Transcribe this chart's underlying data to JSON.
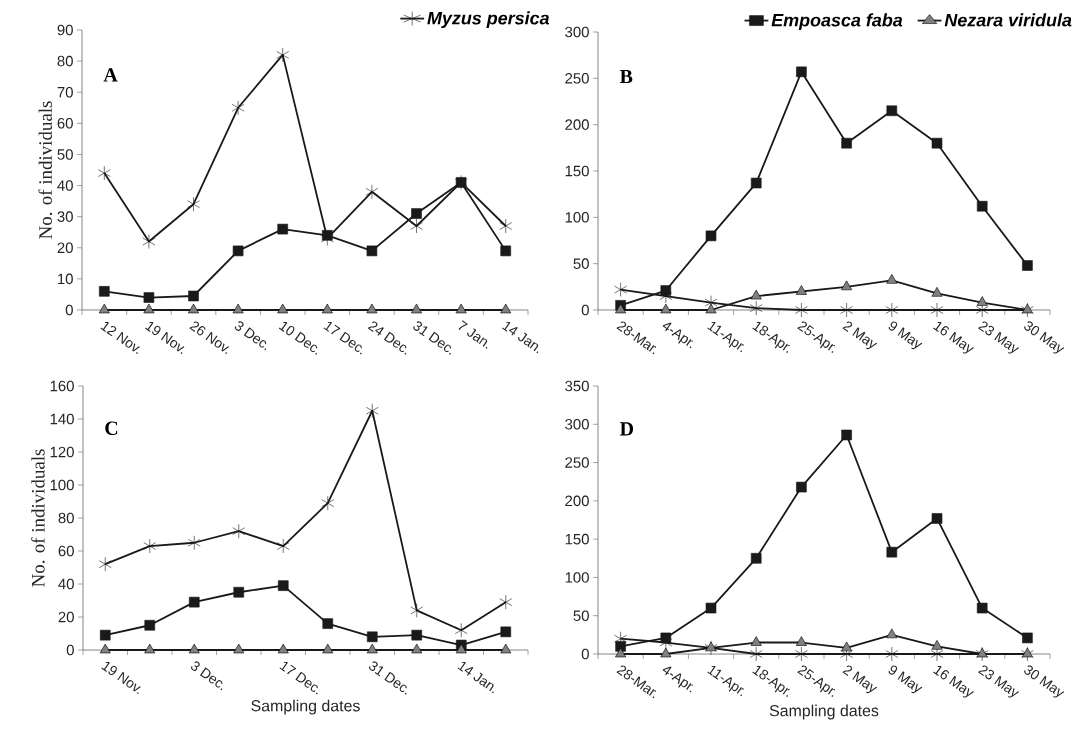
{
  "chart_data": [
    {
      "type": "line",
      "ylabel": "No. of individuals",
      "annotations": [
        "A"
      ],
      "legend": "top right",
      "categories": [
        "12 Nov.",
        "19 Nov.",
        "26 Nov.",
        "3 Dec.",
        "10 Dec.",
        "17 Dec.",
        "24 Dec.",
        "31 Dec.",
        "7 Jan.",
        "14 Jan."
      ],
      "ylim": [
        0,
        90
      ],
      "yticks": [
        0,
        10,
        20,
        30,
        40,
        50,
        60,
        70,
        80,
        90
      ],
      "series": [
        {
          "name": "Myzus persica",
          "color": "#1a1a1a",
          "marker": "cross",
          "values": [
            44,
            22,
            34,
            65,
            82,
            23,
            38,
            27,
            41,
            27
          ]
        },
        {
          "color": "#1a1a1a",
          "marker": "square",
          "values": [
            6,
            4,
            4.5,
            19,
            26,
            24,
            19,
            31,
            41,
            19
          ]
        },
        {
          "color": "#808080",
          "marker": "triangle",
          "values": [
            0,
            0,
            0,
            0,
            0,
            0,
            0,
            0,
            0,
            0
          ]
        }
      ]
    },
    {
      "type": "line",
      "annotations": [
        "B"
      ],
      "legend": "top right",
      "categories": [
        "28-Mar.",
        "4-Apr.",
        "11-Apr.",
        "18-Apr.",
        "25-Apr.",
        "2 May",
        "9 May",
        "16 May",
        "23 May",
        "30 May"
      ],
      "ylim": [
        0,
        300
      ],
      "yticks": [
        0,
        50,
        100,
        150,
        200,
        250,
        300
      ],
      "series": [
        {
          "color": "#1a1a1a",
          "marker": "cross",
          "values": [
            22,
            15,
            8,
            2,
            0,
            0,
            0,
            0,
            0,
            0
          ]
        },
        {
          "name": "Empoasca faba",
          "color": "#1a1a1a",
          "marker": "square",
          "values": [
            5,
            21,
            80,
            137,
            257,
            180,
            215,
            180,
            112,
            48
          ]
        },
        {
          "name": "Nezara viridula",
          "color": "#808080",
          "marker": "triangle",
          "values": [
            0,
            0,
            0,
            15,
            20,
            25,
            32,
            18,
            8,
            0
          ]
        }
      ]
    },
    {
      "type": "line",
      "ylabel": "No. of individuals",
      "xlabel": "Sampling dates",
      "annotations": [
        "C"
      ],
      "categories": [
        "19 Nov.",
        null,
        "3 Dec.",
        null,
        "17 Dec.",
        null,
        "31 Dec.",
        null,
        "14 Jan.",
        null
      ],
      "ylim": [
        0,
        160
      ],
      "yticks": [
        0,
        20,
        40,
        60,
        80,
        100,
        120,
        140,
        160
      ],
      "series": [
        {
          "color": "#1a1a1a",
          "marker": "cross",
          "values": [
            52,
            63,
            65,
            72,
            63,
            89,
            145,
            24,
            12,
            29
          ]
        },
        {
          "color": "#1a1a1a",
          "marker": "square",
          "values": [
            9,
            15,
            29,
            35,
            39,
            16,
            8,
            9,
            3,
            11
          ]
        },
        {
          "color": "#808080",
          "marker": "triangle",
          "values": [
            0,
            0,
            0,
            0,
            0,
            0,
            0,
            0,
            0,
            0
          ]
        }
      ]
    },
    {
      "type": "line",
      "xlabel": "Sampling dates",
      "annotations": [
        "D"
      ],
      "categories": [
        "28-Mar.",
        "4-Apr.",
        "11-Apr.",
        "18-Apr.",
        "25-Apr.",
        "2 May",
        "9 May",
        "16 May",
        "23 May",
        "30 May"
      ],
      "ylim": [
        0,
        350
      ],
      "yticks": [
        0,
        50,
        100,
        150,
        200,
        250,
        300,
        350
      ],
      "series": [
        {
          "color": "#1a1a1a",
          "marker": "cross",
          "values": [
            20,
            15,
            8,
            0,
            0,
            0,
            0,
            0,
            0,
            0
          ]
        },
        {
          "color": "#1a1a1a",
          "marker": "square",
          "values": [
            10,
            21,
            60,
            125,
            218,
            286,
            133,
            177,
            60,
            21
          ]
        },
        {
          "color": "#808080",
          "marker": "triangle",
          "values": [
            0,
            0,
            8,
            15,
            15,
            8,
            25,
            10,
            0,
            0
          ]
        }
      ]
    }
  ]
}
